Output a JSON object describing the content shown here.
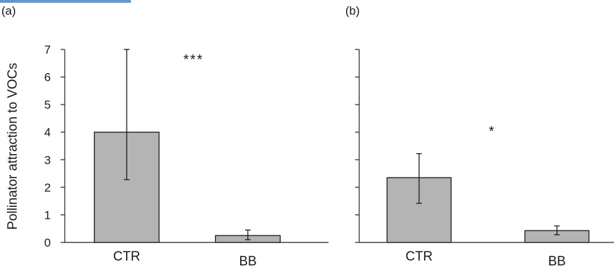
{
  "accent_color": "#5b9bd5",
  "bar_color": "#b4b4b4",
  "chart_data": {
    "type": "bar",
    "ylabel": "Pollinator attraction to VOCs",
    "ylim": [
      0,
      7
    ],
    "yticks": [
      "0",
      "1",
      "2",
      "3",
      "4",
      "5",
      "6",
      "7"
    ],
    "panels": [
      {
        "panel_label": "(a)",
        "categories": [
          "CTR",
          "BB"
        ],
        "values": [
          4.0,
          0.25
        ],
        "error_low": [
          2.28,
          0.1
        ],
        "error_high": [
          7.0,
          0.45
        ],
        "significance": "***"
      },
      {
        "panel_label": "(b)",
        "categories": [
          "CTR",
          "BB"
        ],
        "values": [
          2.35,
          0.43
        ],
        "error_low": [
          1.42,
          0.28
        ],
        "error_high": [
          3.22,
          0.6
        ],
        "significance": "*"
      }
    ]
  }
}
